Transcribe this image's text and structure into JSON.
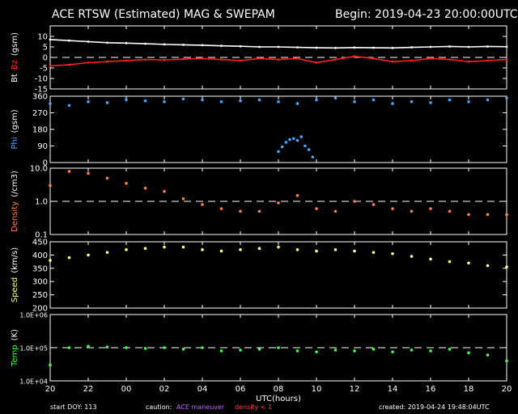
{
  "header": {
    "title": "ACE RTSW (Estimated) MAG & SWEPAM",
    "begin": "Begin: 2019-04-23 20:00:00UTC"
  },
  "footer": {
    "start_doy": "start DOY: 113",
    "caution_label": "caution:",
    "caution_maneuver": "ACE maneuver",
    "caution_density": "density < 1",
    "created": "created: 2019-04-24 19:48:04UTC"
  },
  "colors": {
    "white": "#ffffff",
    "bz_red": "#ff2020",
    "phi_blue": "#3fa7ff",
    "density_orange": "#ff8040",
    "speed_yellow": "#ffff80",
    "temp_green": "#40ff40",
    "maneuver_purple": "#c060ff",
    "density_caution": "#ff4040"
  },
  "chart_data": [
    {
      "type": "line",
      "panel": "mag",
      "ylabel_parts": [
        {
          "text": "Bt",
          "color": "#ffffff"
        },
        {
          "text": "Bz",
          "color": "#ff2020"
        },
        {
          "text": "(gsm)",
          "color": "#ffffff"
        }
      ],
      "ylim": [
        -15,
        15
      ],
      "yticks": [
        10,
        5,
        0,
        -5,
        -10,
        -15
      ],
      "ytick_labels": [
        "10",
        "5",
        "0",
        "-5",
        "-10",
        "-15"
      ],
      "scale": "linear",
      "reference_line": 0,
      "series": [
        {
          "name": "Bt",
          "color": "#ffffff",
          "x": [
            0,
            1,
            2,
            3,
            4,
            5,
            6,
            7,
            8,
            9,
            10,
            11,
            12,
            13,
            14,
            15,
            16,
            17,
            18,
            19,
            20,
            21,
            22,
            23,
            24
          ],
          "y": [
            8.5,
            8.0,
            7.5,
            7.0,
            6.8,
            6.5,
            6.2,
            6.0,
            5.8,
            5.5,
            5.3,
            5.0,
            5.0,
            4.8,
            4.6,
            4.5,
            4.7,
            4.6,
            4.5,
            4.8,
            5.0,
            5.2,
            5.0,
            5.2,
            5.1
          ]
        },
        {
          "name": "Bz",
          "color": "#ff2020",
          "x": [
            0,
            1,
            2,
            3,
            4,
            5,
            6,
            7,
            8,
            9,
            10,
            11,
            12,
            13,
            14,
            15,
            16,
            17,
            18,
            19,
            20,
            21,
            22,
            23,
            24
          ],
          "y": [
            -4.0,
            -3.5,
            -2.5,
            -2.0,
            -1.5,
            -1.0,
            -1.2,
            -0.8,
            -0.5,
            -1.0,
            -1.5,
            -0.5,
            -1.0,
            -0.5,
            -2.5,
            -1.0,
            0.5,
            -0.5,
            -2.0,
            -1.5,
            -0.5,
            -1.0,
            -2.0,
            -1.5,
            -1.0
          ]
        }
      ]
    },
    {
      "type": "scatter",
      "panel": "phi",
      "ylabel_parts": [
        {
          "text": "Phi",
          "color": "#3fa7ff"
        },
        {
          "text": "(gsm)",
          "color": "#ffffff"
        }
      ],
      "ylim": [
        0,
        360
      ],
      "yticks": [
        360,
        270,
        180,
        90,
        0
      ],
      "ytick_labels": [
        "360",
        "270",
        "180",
        "90",
        "0"
      ],
      "scale": "linear",
      "series": [
        {
          "name": "Phi",
          "color": "#3fa7ff",
          "x": [
            0,
            1,
            2,
            3,
            4,
            5,
            6,
            7,
            8,
            9,
            10,
            11,
            12,
            13,
            14,
            15,
            16,
            17,
            18,
            19,
            20,
            21,
            22,
            23,
            24
          ],
          "y": [
            320,
            310,
            330,
            325,
            340,
            335,
            330,
            345,
            340,
            330,
            335,
            340,
            330,
            320,
            340,
            350,
            330,
            340,
            320,
            330,
            325,
            340,
            330,
            340,
            350
          ]
        },
        {
          "name": "Phi-low",
          "color": "#3fa7ff",
          "x": [
            12.0,
            12.2,
            12.4,
            12.6,
            12.8,
            13.0,
            13.2,
            13.4,
            13.6,
            13.8
          ],
          "y": [
            60,
            85,
            110,
            125,
            130,
            120,
            140,
            90,
            70,
            30
          ]
        }
      ]
    },
    {
      "type": "scatter",
      "panel": "density",
      "ylabel_parts": [
        {
          "text": "Density",
          "color": "#ff8040"
        },
        {
          "text": "(/cm3)",
          "color": "#ffffff"
        }
      ],
      "ylim": [
        0.1,
        10.0
      ],
      "yticks": [
        10.0,
        1.0,
        0.1
      ],
      "ytick_labels": [
        "10.0",
        "1.0",
        "0.1"
      ],
      "scale": "log",
      "reference_line": 1.0,
      "series": [
        {
          "name": "Density",
          "color": "#ff8040",
          "x": [
            0,
            1,
            2,
            3,
            4,
            5,
            6,
            7,
            8,
            9,
            10,
            11,
            12,
            13,
            14,
            15,
            16,
            17,
            18,
            19,
            20,
            21,
            22,
            23,
            24
          ],
          "y": [
            3.0,
            8.0,
            7.0,
            5.0,
            3.5,
            2.5,
            2.0,
            1.2,
            0.8,
            0.6,
            0.5,
            0.5,
            0.9,
            1.5,
            0.6,
            0.5,
            1.0,
            0.8,
            0.6,
            0.5,
            0.6,
            0.5,
            0.4,
            0.4,
            0.4
          ]
        }
      ]
    },
    {
      "type": "scatter",
      "panel": "speed",
      "ylabel_parts": [
        {
          "text": "Speed",
          "color": "#ffff80"
        },
        {
          "text": "(km/s)",
          "color": "#ffffff"
        }
      ],
      "ylim": [
        200,
        450
      ],
      "yticks": [
        450,
        400,
        350,
        300,
        250,
        200
      ],
      "ytick_labels": [
        "450",
        "400",
        "350",
        "300",
        "250",
        "200"
      ],
      "scale": "linear",
      "series": [
        {
          "name": "Speed",
          "color": "#ffff80",
          "x": [
            0,
            1,
            2,
            3,
            4,
            5,
            6,
            7,
            8,
            9,
            10,
            11,
            12,
            13,
            14,
            15,
            16,
            17,
            18,
            19,
            20,
            21,
            22,
            23,
            24
          ],
          "y": [
            380,
            390,
            400,
            410,
            420,
            425,
            430,
            430,
            420,
            415,
            420,
            425,
            430,
            420,
            415,
            420,
            415,
            410,
            405,
            395,
            385,
            375,
            370,
            360,
            355
          ]
        }
      ]
    },
    {
      "type": "scatter",
      "panel": "temp",
      "ylabel_parts": [
        {
          "text": "Temp",
          "color": "#40ff40"
        },
        {
          "text": "(K)",
          "color": "#ffffff"
        }
      ],
      "ylim": [
        10000,
        1000000
      ],
      "yticks": [
        1000000,
        100000,
        10000
      ],
      "ytick_labels": [
        "1.0E+06",
        "1.0E+05",
        "1.0E+04"
      ],
      "scale": "log",
      "reference_line": 100000,
      "series": [
        {
          "name": "Temp",
          "color": "#40ff40",
          "x": [
            0,
            1,
            2,
            3,
            4,
            5,
            6,
            7,
            8,
            9,
            10,
            11,
            12,
            13,
            14,
            15,
            16,
            17,
            18,
            19,
            20,
            21,
            22,
            23,
            24
          ],
          "y": [
            30000,
            100000,
            110000,
            105000,
            100000,
            95000,
            100000,
            90000,
            100000,
            80000,
            85000,
            90000,
            100000,
            80000,
            75000,
            85000,
            80000,
            90000,
            75000,
            85000,
            80000,
            90000,
            70000,
            60000,
            40000
          ]
        }
      ]
    }
  ],
  "x_axis": {
    "xlabel": "UTC(hours)",
    "ticks": [
      0,
      2,
      4,
      6,
      8,
      10,
      12,
      14,
      16,
      18,
      20,
      22,
      24
    ],
    "tick_labels": [
      "20",
      "22",
      "00",
      "02",
      "04",
      "06",
      "08",
      "10",
      "12",
      "14",
      "16",
      "18",
      "20"
    ]
  }
}
